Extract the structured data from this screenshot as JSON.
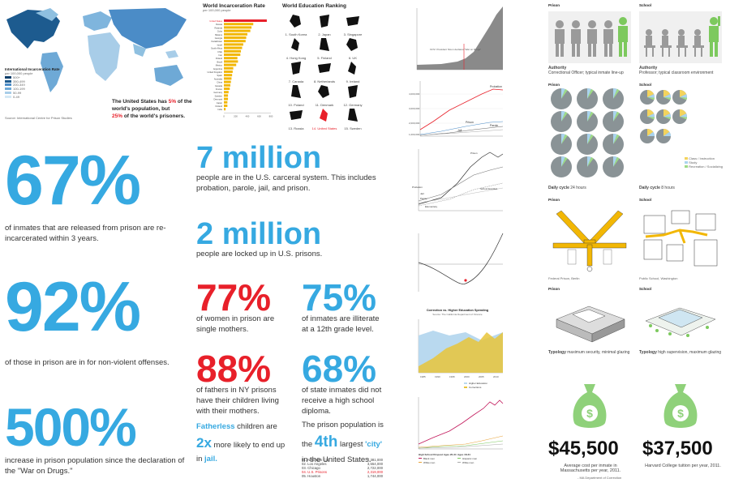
{
  "map": {
    "legend_title": "International Incarceration Rate",
    "legend_subtitle": "per 100,000 people",
    "legend_items": [
      "500+",
      "350-499",
      "200-349",
      "100-199",
      "50-99",
      "0-49"
    ],
    "headline_1": "The United States has ",
    "headline_pct1": "5%",
    "headline_2": " of the world's population, but",
    "headline_pct2": "25%",
    "headline_3": " of the world's prisoners.",
    "source": "Source: International Centre for Prison Studies"
  },
  "incarceration": {
    "title": "World Incarceration Rate",
    "subtitle": "per 100,000 people",
    "countries": [
      "United States",
      "Russia",
      "Rwanda",
      "Cuba",
      "Belarus",
      "Georgia",
      "Kazakhstan",
      "Israel",
      "South Africa",
      "Chile",
      "Iran",
      "Poland",
      "Brazil",
      "Mexico",
      "Argentina",
      "United Kingdom",
      "Spain",
      "Australia",
      "China",
      "Canada",
      "France",
      "Germany",
      "Sweden",
      "Denmark",
      "Japan",
      "Finland",
      "India"
    ],
    "values": [
      730,
      500,
      470,
      450,
      400,
      380,
      370,
      330,
      310,
      290,
      280,
      230,
      240,
      210,
      160,
      150,
      140,
      130,
      120,
      110,
      100,
      80,
      70,
      70,
      60,
      60,
      30
    ],
    "axis": [
      "0",
      "200",
      "400",
      "600",
      "800"
    ]
  },
  "education": {
    "title": "World Education Ranking",
    "countries": [
      "1. South Korea",
      "2. Japan",
      "3. Singapore",
      "4. Hong Kong",
      "5. Finland",
      "6. UK",
      "7. Canada",
      "8. Netherlands",
      "9. Ireland",
      "10. Poland",
      "11. Denmark",
      "12. Germany",
      "13. Russia",
      "14. United States",
      "15. Sweden"
    ]
  },
  "stats": {
    "pct67": "67%",
    "pct67_text": "of inmates that are released from prison are re-incarcerated within 3 years.",
    "pct92": "92%",
    "pct92_text": "of those in prison are in for non-violent offenses.",
    "pct500": "500%",
    "pct500_text": "increase in prison population since the declaration of the \"War on Drugs.\"",
    "m7": "7 million",
    "m7_text": "people are in the U.S. carceral system. This includes probation, parole, jail, and prison.",
    "m2": "2 million",
    "m2_text": "people are locked up in U.S. prisons.",
    "pct77": "77%",
    "pct77_text": "of women in prison are single mothers.",
    "pct75": "75%",
    "pct75_text": "of inmates are illiterate at a 12th grade level.",
    "pct88": "88%",
    "pct88_text": "of fathers in NY prisons have their children living with their mothers.",
    "pct68": "68%",
    "pct68_text": "of state inmates did not receive a high school diploma.",
    "fatherless_a": "Fatherless",
    "fatherless_b": " children are",
    "two_x": "2x",
    "fatherless_c": " more likely to end up in ",
    "jail": "jail.",
    "prison_city_a": "The prison population is",
    "prison_city_b": "the ",
    "fourth": "4th",
    "prison_city_c": " largest ",
    "city": "'city'",
    "prison_city_d": "in the United States.",
    "cities": [
      "01. New York City",
      "02. Los Angeles",
      "03. Chicago",
      "04. U.S. Prisons",
      "05. Houston"
    ],
    "populations": [
      "7,381,000",
      "3,554,000",
      "2,722,000",
      "2,319,000",
      "1,744,000"
    ]
  },
  "charts": {
    "c1_note": "1972: President Nixon declares \"War on Drugs\"",
    "c2_labels": [
      "Probation",
      "Prison",
      "Parole",
      "Jail"
    ],
    "c2_y": [
      "4,000,000",
      "3,000,000",
      "2,000,000",
      "1,000,000"
    ],
    "c3_labels": [
      "Prison",
      "Probation",
      "Jail",
      "Parole",
      "Post-secondary",
      "Elementary",
      "School Enrolled"
    ],
    "c5_title": "Correction vs. Higher Education Spending",
    "c5_subtitle": "Source: The California Department of Finance",
    "c5_legend": [
      "Higher Education",
      "Corrections"
    ],
    "c5_x": [
      "1985",
      "1990",
      "1995",
      "2000",
      "2005",
      "2010"
    ],
    "c6_legend_a": "High School Dropout Ages 20-34",
    "c6_legend_b": "Ages 18-34",
    "c6_items": [
      "Black men",
      "White men",
      "Hispanic men",
      "White men"
    ]
  },
  "compare": {
    "prison": "Prison",
    "school": "School",
    "authority_label": "Authority",
    "authority_prison": "Correctional Officer; typical inmate line-up",
    "authority_school": "Professor; typical classroom environment",
    "daily_label": "Daily cycle",
    "daily_prison": "24 hours",
    "daily_school": "8 hours",
    "pie_legend": [
      "Class / Instruction",
      "Study",
      "Recreation / Socializing"
    ],
    "plan_prison": "Federal Prison, Berlin",
    "plan_school": "Public School, Washington",
    "typology_label": "Typology",
    "typology_prison": "maximum security, minimal glazing",
    "typology_school": "high supervision, maximum glazing",
    "cost_prison": "$45,500",
    "cost_prison_text": "Average cost per inmate in Massachusetts per year, 2011.",
    "cost_school": "$37,500",
    "cost_school_text": "Harvard College tuition per year, 2011.",
    "source": "- MA Department of Correction"
  },
  "colors": {
    "blue": "#36a9e1",
    "red": "#e8202a",
    "gold": "#f2b705",
    "green": "#7dc95e",
    "gray": "#8a9396"
  }
}
